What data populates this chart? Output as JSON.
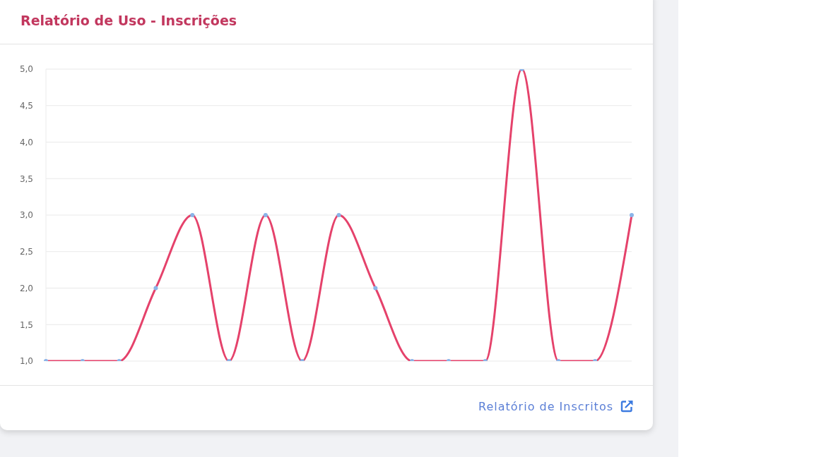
{
  "chart_data": {
    "type": "line",
    "title": "Relatório de Uso - Inscrições",
    "categories": [
      null,
      null,
      null,
      null,
      null,
      null,
      null,
      null,
      null,
      null,
      null,
      null,
      null,
      null,
      null,
      null,
      null
    ],
    "series": [
      {
        "color": "#e5426b",
        "values": [
          1,
          1,
          1,
          2,
          3,
          1,
          3,
          1,
          3,
          2,
          1,
          1,
          1,
          5,
          1,
          1,
          3
        ]
      }
    ],
    "ylim": [
      1,
      5
    ],
    "yticks": [
      {
        "value": 1,
        "label": "1,0"
      },
      {
        "value": 1.5,
        "label": "1,5"
      },
      {
        "value": 2,
        "label": "2,0"
      },
      {
        "value": 2.5,
        "label": "2,5"
      },
      {
        "value": 3,
        "label": "3,0"
      },
      {
        "value": 3.5,
        "label": "3,5"
      },
      {
        "value": 4,
        "label": "4,0"
      },
      {
        "value": 4.5,
        "label": "4,5"
      },
      {
        "value": 5,
        "label": "5,0"
      }
    ],
    "grid": "y",
    "marker": "circle",
    "annotations": [
      "Relatório de Inscritos"
    ]
  }
}
